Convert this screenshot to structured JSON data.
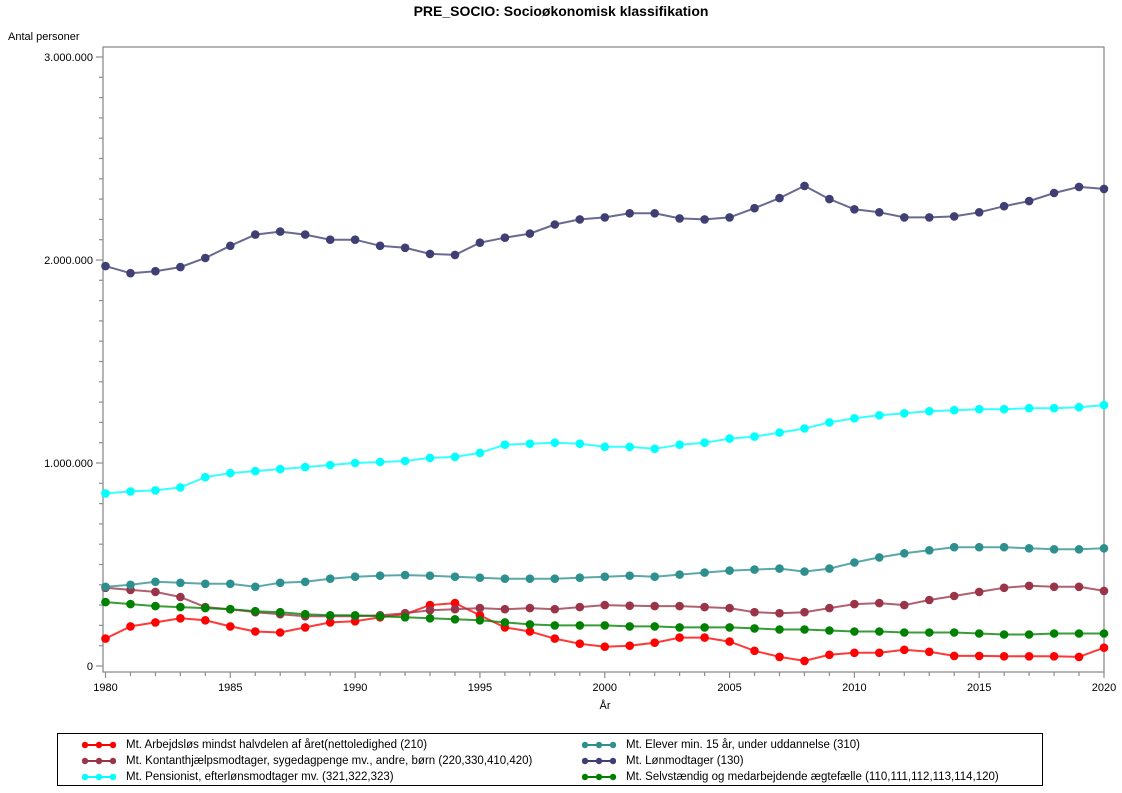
{
  "window": {
    "background": "#ffffff"
  },
  "chart_data": {
    "type": "line",
    "title": "PRE_SOCIO: Socioøkonomisk klassifikation",
    "xlabel": "År",
    "ylabel": "Antal personer",
    "x": [
      1980,
      1981,
      1982,
      1983,
      1984,
      1985,
      1986,
      1987,
      1988,
      1989,
      1990,
      1991,
      1992,
      1993,
      1994,
      1995,
      1996,
      1997,
      1998,
      1999,
      2000,
      2001,
      2002,
      2003,
      2004,
      2005,
      2006,
      2007,
      2008,
      2009,
      2010,
      2011,
      2012,
      2013,
      2014,
      2015,
      2016,
      2017,
      2018,
      2019,
      2020
    ],
    "xlim": [
      1980,
      2020
    ],
    "ylim": [
      0,
      3000000
    ],
    "x_ticks_major": [
      1980,
      1985,
      1990,
      1995,
      2000,
      2005,
      2010,
      2015,
      2020
    ],
    "x_minor_step": 1,
    "y_ticks_major": [
      0,
      1000000,
      2000000,
      3000000
    ],
    "y_tick_labels": [
      "0",
      "1.000.000",
      "2.000.000",
      "3.000.000"
    ],
    "y_minor_step": 100000,
    "grid": "off",
    "axis_color": "#8d8d8d",
    "legend_position": "bottom",
    "legend_columns": {
      "left": [
        0,
        1,
        2
      ],
      "right": [
        3,
        4,
        5
      ]
    },
    "series": [
      {
        "name": "Mt. Arbejdsløs mindst halvdelen af året(nettoledighed (210)",
        "color": "#ff0000",
        "values": [
          135000,
          195000,
          215000,
          235000,
          225000,
          195000,
          170000,
          165000,
          190000,
          215000,
          220000,
          240000,
          255000,
          300000,
          310000,
          250000,
          190000,
          170000,
          135000,
          110000,
          95000,
          100000,
          115000,
          140000,
          140000,
          120000,
          75000,
          45000,
          25000,
          55000,
          65000,
          65000,
          80000,
          70000,
          50000,
          50000,
          48000,
          48000,
          48000,
          45000,
          90000
        ]
      },
      {
        "name": "Mt. Kontanthjælpsmodtager, sygedagpenge mv., andre, børn (220,330,410,420)",
        "color": "#9a3448",
        "values": [
          385000,
          375000,
          365000,
          340000,
          290000,
          280000,
          265000,
          255000,
          245000,
          245000,
          245000,
          250000,
          260000,
          275000,
          280000,
          285000,
          280000,
          285000,
          280000,
          290000,
          300000,
          297000,
          295000,
          295000,
          290000,
          285000,
          265000,
          260000,
          265000,
          285000,
          305000,
          310000,
          300000,
          325000,
          345000,
          365000,
          385000,
          395000,
          390000,
          390000,
          370000
        ]
      },
      {
        "name": "Mt. Pensionist, efterlønsmodtager mv. (321,322,323)",
        "color": "#00ffff",
        "values": [
          850000,
          860000,
          865000,
          880000,
          930000,
          950000,
          960000,
          970000,
          980000,
          990000,
          1000000,
          1005000,
          1010000,
          1025000,
          1030000,
          1050000,
          1090000,
          1095000,
          1100000,
          1095000,
          1080000,
          1080000,
          1070000,
          1090000,
          1100000,
          1120000,
          1130000,
          1150000,
          1170000,
          1200000,
          1220000,
          1235000,
          1245000,
          1255000,
          1260000,
          1265000,
          1265000,
          1270000,
          1270000,
          1275000,
          1285000
        ]
      },
      {
        "name": "Mt. Elever min. 15 år, under uddannelse (310)",
        "color": "#2e8f8f",
        "values": [
          390000,
          400000,
          415000,
          410000,
          405000,
          405000,
          390000,
          410000,
          415000,
          430000,
          440000,
          445000,
          448000,
          445000,
          440000,
          435000,
          430000,
          430000,
          430000,
          435000,
          440000,
          445000,
          440000,
          450000,
          460000,
          470000,
          475000,
          480000,
          465000,
          480000,
          510000,
          535000,
          555000,
          570000,
          585000,
          585000,
          585000,
          580000,
          575000,
          575000,
          580000
        ]
      },
      {
        "name": "Mt. Lønmodtager (130)",
        "color": "#3f3f73",
        "values": [
          1970000,
          1935000,
          1945000,
          1965000,
          2010000,
          2070000,
          2125000,
          2140000,
          2125000,
          2100000,
          2100000,
          2070000,
          2060000,
          2030000,
          2025000,
          2085000,
          2110000,
          2130000,
          2175000,
          2200000,
          2210000,
          2230000,
          2230000,
          2205000,
          2200000,
          2210000,
          2255000,
          2305000,
          2365000,
          2300000,
          2250000,
          2235000,
          2210000,
          2210000,
          2215000,
          2235000,
          2265000,
          2290000,
          2330000,
          2360000,
          2350000
        ]
      },
      {
        "name": "Mt. Selvstændig og medarbejdende ægtefælle (110,111,112,113,114,120)",
        "color": "#008000",
        "values": [
          315000,
          305000,
          295000,
          290000,
          285000,
          280000,
          270000,
          265000,
          255000,
          250000,
          250000,
          245000,
          240000,
          235000,
          230000,
          225000,
          215000,
          205000,
          200000,
          200000,
          200000,
          195000,
          195000,
          190000,
          190000,
          190000,
          185000,
          180000,
          180000,
          175000,
          170000,
          170000,
          165000,
          165000,
          165000,
          160000,
          155000,
          155000,
          160000,
          160000,
          160000
        ]
      }
    ]
  }
}
